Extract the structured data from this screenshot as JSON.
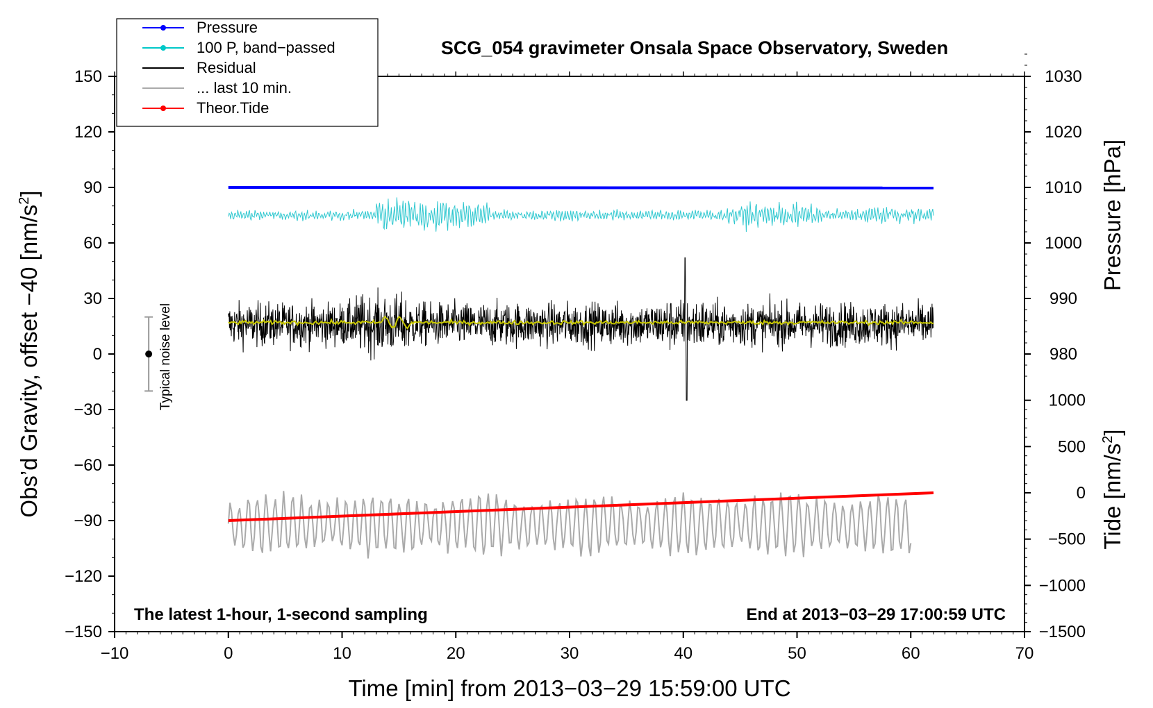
{
  "chart_data": {
    "type": "line",
    "title": "SCG_054 gravimeter Onsala Space Observatory, Sweden",
    "xlabel": "Time [min] from 2013−03−29 15:59:00 UTC",
    "ylabel_left": "Obs’d Gravity, offset −40 [nm/s",
    "ylabel_left_sup": "2",
    "ylabel_left_close": "]",
    "ylabel_right_pressure": "Pressure [hPa]",
    "ylabel_right_tide": "Tide [nm/s",
    "ylabel_right_tide_sup": "2",
    "ylabel_right_tide_close": "]",
    "xlim": [
      -10,
      70
    ],
    "ylim": [
      -150,
      150
    ],
    "x_ticks": [
      -10,
      0,
      10,
      20,
      30,
      40,
      50,
      60,
      70
    ],
    "x_tick_labels": [
      "−10",
      "0",
      "10",
      "20",
      "30",
      "40",
      "50",
      "60",
      "70"
    ],
    "y_ticks": [
      150,
      120,
      90,
      60,
      30,
      0,
      -30,
      -60,
      -90,
      -120,
      -150
    ],
    "y_tick_labels": [
      "150",
      "120",
      "90",
      "60",
      "30",
      "0",
      "−30",
      "−60",
      "−90",
      "−120",
      "−150"
    ],
    "pressure_axis": {
      "ticks": [
        1030,
        1020,
        1010,
        1000,
        990,
        980
      ],
      "labels": [
        "1030",
        "1020",
        "1010",
        "1000",
        "990",
        "980"
      ],
      "left_equiv_at_1010": 90,
      "left_per_hpa": 3.0
    },
    "tide_axis": {
      "ticks": [
        1000,
        500,
        0,
        -500,
        -1000,
        -1500
      ],
      "labels": [
        "1000",
        "500",
        "0",
        "−500",
        "−1000",
        "−1500"
      ],
      "left_equiv_at_0": -75,
      "left_per_unit": 0.05
    },
    "annotations": {
      "bottom_left": "The latest 1-hour, 1-second sampling",
      "bottom_right": "End at 2013−03−29 17:00:59 UTC",
      "noise_label": "Typical noise level",
      "noise_bar": {
        "x": -7,
        "center": 0,
        "half_range": 20
      }
    },
    "legend": {
      "position": "top-left",
      "entries": [
        {
          "label": "Pressure",
          "color": "#0000ff",
          "marker": true
        },
        {
          "label": "100 P, band−passed",
          "color": "#00c8c8",
          "marker": true
        },
        {
          "label": "Residual",
          "color": "#000000",
          "marker": false
        },
        {
          "label": "... last 10 min.",
          "color": "#aaaaaa",
          "marker": false
        },
        {
          "label": "Theor.Tide",
          "color": "#ff0000",
          "marker": true
        }
      ]
    },
    "series": [
      {
        "name": "Pressure",
        "color": "#0000ff",
        "x_range": [
          0,
          62
        ],
        "hpa": 1010.0,
        "hpa_end": 1009.9
      },
      {
        "name": "100 P, band-passed",
        "color": "#30c8d0",
        "x_range": [
          0,
          62
        ],
        "center": 75,
        "amplitude": 6
      },
      {
        "name": "Residual",
        "color": "#000000",
        "x_range": [
          0,
          62
        ],
        "center": 16,
        "amplitude": 15
      },
      {
        "name": "Residual smoothed",
        "color": "#c8c800",
        "x_range": [
          0,
          62
        ],
        "center": 17,
        "amplitude": 1.5
      },
      {
        "name": "... last 10 min.",
        "color": "#aaaaaa",
        "x_range": [
          0,
          60
        ],
        "center": -92,
        "amplitude": 13
      },
      {
        "name": "Theor.Tide",
        "color": "#ff0000",
        "x": [
          0,
          62
        ],
        "tide_nm_s2": [
          -300,
          0
        ]
      }
    ]
  }
}
